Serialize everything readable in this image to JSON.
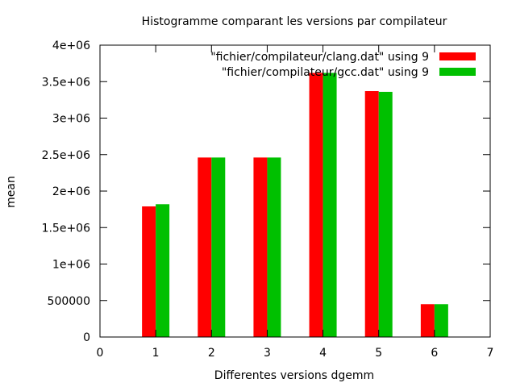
{
  "chart_data": {
    "type": "bar",
    "title": "Histogramme comparant les versions par compilateur",
    "xlabel": "Differentes versions dgemm",
    "ylabel": "mean",
    "xlim": [
      0,
      7
    ],
    "ylim": [
      0,
      4000000
    ],
    "x_ticks": [
      "0",
      "1",
      "2",
      "3",
      "4",
      "5",
      "6",
      "7"
    ],
    "y_ticks": [
      {
        "value": 0,
        "label": "0"
      },
      {
        "value": 500000,
        "label": "500000"
      },
      {
        "value": 1000000,
        "label": "1e+06"
      },
      {
        "value": 1500000,
        "label": "1.5e+06"
      },
      {
        "value": 2000000,
        "label": "2e+06"
      },
      {
        "value": 2500000,
        "label": "2.5e+06"
      },
      {
        "value": 3000000,
        "label": "3e+06"
      },
      {
        "value": 3500000,
        "label": "3.5e+06"
      },
      {
        "value": 4000000,
        "label": "4e+06"
      }
    ],
    "grid": false,
    "legend_position": "top-right",
    "categories": [
      1,
      2,
      3,
      4,
      5,
      6
    ],
    "series": [
      {
        "name": "\"fichier/compilateur/clang.dat\" using 9",
        "color": "#ff0000",
        "values": [
          1790000,
          2460000,
          2460000,
          3620000,
          3370000,
          450000
        ]
      },
      {
        "name": "\"fichier/compilateur/gcc.dat\" using 9",
        "color": "#00c000",
        "values": [
          1820000,
          2460000,
          2460000,
          3620000,
          3360000,
          450000
        ]
      }
    ]
  }
}
